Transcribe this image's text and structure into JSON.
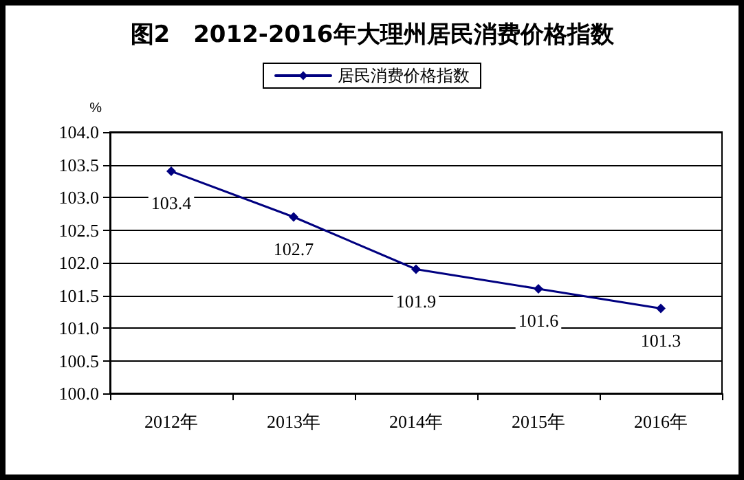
{
  "chart_data": {
    "type": "line",
    "title": "图2　2012-2016年大理州居民消费价格指数",
    "ylabel": "%",
    "categories": [
      "2012年",
      "2013年",
      "2014年",
      "2015年",
      "2016年"
    ],
    "series": [
      {
        "name": "居民消费价格指数",
        "color": "#000080",
        "values": [
          103.4,
          102.7,
          101.9,
          101.6,
          101.3
        ]
      }
    ],
    "ylim": [
      100.0,
      104.0
    ],
    "yticks": [
      {
        "value": 100,
        "label": "100.0"
      },
      {
        "value": 100.5,
        "label": "100.5"
      },
      {
        "value": 101,
        "label": "101.0"
      },
      {
        "value": 101.5,
        "label": "101.5"
      },
      {
        "value": 102,
        "label": "102.0"
      },
      {
        "value": 102.5,
        "label": "102.5"
      },
      {
        "value": 103,
        "label": "103.0"
      },
      {
        "value": 103.5,
        "label": "103.5"
      },
      {
        "value": 104,
        "label": "104.0"
      }
    ],
    "grid": "y",
    "legend": "top",
    "marker": "diamond",
    "line_style": "solid",
    "data_labels": true
  }
}
